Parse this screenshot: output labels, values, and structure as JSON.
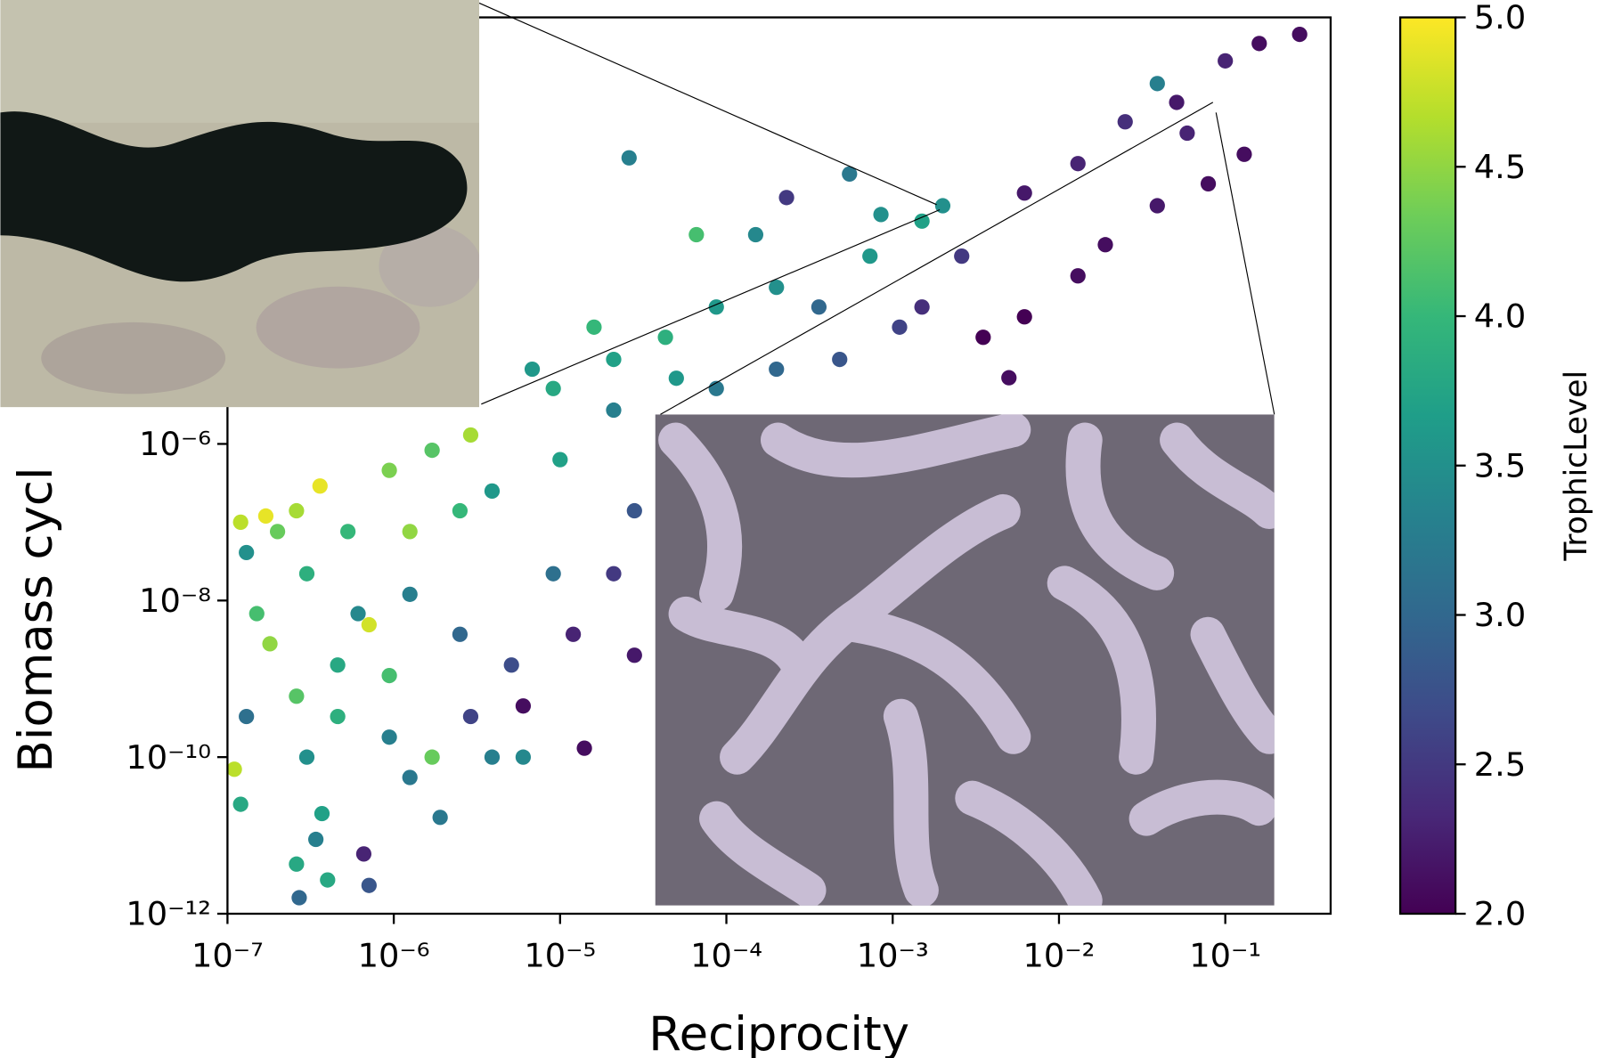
{
  "chart_data": {
    "type": "scatter",
    "xlabel": "Reciprocity",
    "ylabel": "Biomass cycl",
    "xscale": "log",
    "yscale": "log",
    "xlim": [
      1e-07,
      0.43
    ],
    "ylim": [
      1e-12,
      0.28
    ],
    "xticks": [
      {
        "value": 1e-07,
        "label": "10⁻⁷"
      },
      {
        "value": 1e-06,
        "label": "10⁻⁶"
      },
      {
        "value": 1e-05,
        "label": "10⁻⁵"
      },
      {
        "value": 0.0001,
        "label": "10⁻⁴"
      },
      {
        "value": 0.001,
        "label": "10⁻³"
      },
      {
        "value": 0.01,
        "label": "10⁻²"
      },
      {
        "value": 0.1,
        "label": "10⁻¹"
      }
    ],
    "yticks": [
      {
        "value": 1e-12,
        "label": "10⁻¹²"
      },
      {
        "value": 1e-10,
        "label": "10⁻¹⁰"
      },
      {
        "value": 1e-08,
        "label": "10⁻⁸"
      },
      {
        "value": 1e-06,
        "label": "10⁻⁶"
      }
    ],
    "colormap": "viridis",
    "clabel": "TrophicLevel",
    "clim": [
      2,
      5
    ],
    "cticks": [
      {
        "value": 2,
        "label": "2.0"
      },
      {
        "value": 2.5,
        "label": "2.5"
      },
      {
        "value": 3,
        "label": "3.0"
      },
      {
        "value": 3.5,
        "label": "3.5"
      },
      {
        "value": 4,
        "label": "4.0"
      },
      {
        "value": 4.5,
        "label": "4.5"
      },
      {
        "value": 5,
        "label": "5.0"
      }
    ],
    "x": [
      0.28,
      0.13,
      0.039,
      2.6e-05,
      0.00055,
      0.00023,
      0.005,
      2.7e-07,
      1.2e-07,
      1.1e-07,
      1.8e-07,
      3.6e-07,
      1.7e-07,
      2.9e-06,
      6.8e-06,
      1.4e-05,
      6.6e-07,
      3.7e-07,
      1.9e-06,
      8.7e-05,
      4.3e-05,
      0.0002,
      0.00073,
      0.0015,
      0.002,
      0.0062,
      0.013,
      0.025,
      0.051,
      0.1,
      0.16,
      0.079,
      0.013,
      0.0035,
      0.0015,
      0.00048,
      0.0002,
      8.7e-05,
      2.1e-05,
      1e-05,
      3.9e-06,
      1.7e-06,
      9.4e-07,
      5.3e-07,
      3e-07,
      1.3e-07,
      1.5e-07,
      1.25e-06,
      2.5e-06,
      5.1e-06,
      1.2e-05,
      2.1e-05,
      2.8e-05,
      9.1e-06,
      2.9e-06,
      9.4e-07,
      4.6e-07,
      2.6e-07,
      4.6e-07,
      7.1e-07,
      3e-07,
      1.25e-06,
      1.7e-06,
      3.9e-06,
      6e-06,
      7.1e-07,
      4e-07,
      2.6e-07,
      3.4e-07,
      6.6e-05,
      0.00015,
      0.00085,
      0.0062,
      0.019,
      0.039,
      0.059,
      0.0026,
      0.00036,
      0.0011,
      1.6e-05,
      9.1e-06,
      2.1e-05,
      5e-05,
      2.5e-06,
      1.25e-06,
      2e-07,
      1.2e-07,
      2.6e-07,
      6.1e-07,
      9.4e-07,
      1.3e-07,
      6e-06,
      2.8e-05
    ],
    "y": [
      0.17,
      0.005,
      0.04,
      0.0045,
      0.0028,
      0.0014,
      7e-06,
      1.6e-12,
      2.5e-11,
      7e-11,
      2.8e-09,
      2.9e-07,
      1.2e-07,
      1.3e-06,
      9e-06,
      1.3e-10,
      5.8e-12,
      1.9e-11,
      1.7e-11,
      5.6e-05,
      2.3e-05,
      0.0001,
      0.00025,
      0.0007,
      0.0011,
      0.0016,
      0.0038,
      0.013,
      0.023,
      0.078,
      0.13,
      0.0021,
      0.00014,
      2.3e-05,
      5.6e-05,
      1.2e-05,
      9e-06,
      5.1e-06,
      2.7e-06,
      6.3e-07,
      2.5e-07,
      8.3e-07,
      4.6e-07,
      7.6e-08,
      2.2e-08,
      4.1e-08,
      6.8e-09,
      1.2e-08,
      3.7e-09,
      1.5e-09,
      3.7e-09,
      2.2e-08,
      1.4e-07,
      2.2e-08,
      3.3e-10,
      1.8e-10,
      3.3e-10,
      6e-10,
      1.5e-09,
      4.9e-09,
      1e-10,
      5.5e-11,
      1e-10,
      1e-10,
      1e-10,
      2.3e-12,
      2.7e-12,
      4.3e-12,
      8.9e-12,
      0.00047,
      0.00047,
      0.00085,
      4.2e-05,
      0.00035,
      0.0011,
      0.0093,
      0.00025,
      5.6e-05,
      3.1e-05,
      3.1e-05,
      5.1e-06,
      1.2e-05,
      6.9e-06,
      1.4e-07,
      7.6e-08,
      7.6e-08,
      1e-07,
      1.4e-07,
      6.8e-09,
      1.1e-09,
      3.3e-10,
      4.5e-10,
      2e-09
    ],
    "c": [
      2.1,
      2.1,
      3.3,
      3.3,
      3.2,
      2.5,
      2.1,
      3.0,
      3.8,
      4.7,
      4.5,
      4.9,
      4.9,
      4.6,
      3.6,
      2.1,
      2.3,
      3.7,
      3.2,
      3.6,
      3.9,
      3.5,
      3.6,
      3.7,
      3.5,
      2.2,
      2.3,
      2.4,
      2.2,
      2.3,
      2.1,
      2.1,
      2.1,
      2.0,
      2.4,
      2.8,
      3.0,
      3.2,
      3.3,
      3.7,
      3.6,
      4.2,
      4.4,
      4.0,
      3.9,
      3.5,
      4.1,
      3.3,
      3.0,
      2.7,
      2.3,
      2.5,
      2.8,
      3.1,
      2.6,
      3.3,
      3.9,
      4.2,
      3.8,
      4.8,
      3.5,
      3.2,
      4.3,
      3.3,
      3.4,
      2.8,
      3.8,
      3.8,
      3.3,
      4.1,
      3.4,
      3.5,
      2.0,
      2.1,
      2.2,
      2.3,
      2.5,
      3.0,
      2.6,
      4.0,
      3.8,
      3.7,
      3.6,
      4.0,
      4.5,
      4.3,
      4.7,
      4.6,
      3.4,
      4.1,
      3.1,
      2.1,
      2.2
    ]
  }
}
